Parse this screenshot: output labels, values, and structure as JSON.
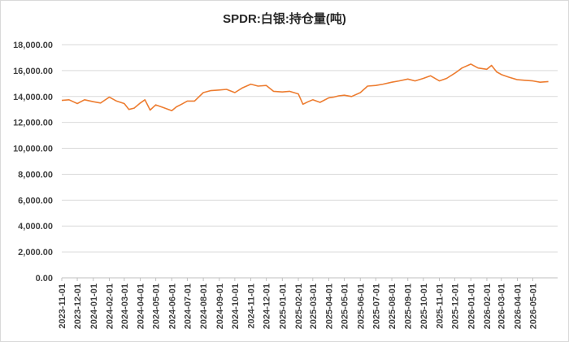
{
  "chart_data": {
    "type": "line",
    "title": "SPDR:白银:持仓量(吨)",
    "xlabel": "",
    "ylabel": "",
    "ylim": [
      0,
      18000
    ],
    "y_ticks": [
      "0.00",
      "2,000.00",
      "4,000.00",
      "6,000.00",
      "8,000.00",
      "10,000.00",
      "12,000.00",
      "14,000.00",
      "16,000.00",
      "18,000.00"
    ],
    "x_ticks": [
      "2023-11-01",
      "2023-12-01",
      "2024-01-01",
      "2024-02-01",
      "2024-03-01",
      "2024-04-01",
      "2024-05-01",
      "2024-06-01",
      "2024-07-01",
      "2024-08-01",
      "2024-09-01",
      "2024-10-01",
      "2024-11-01",
      "2024-12-01",
      "2025-01-01",
      "2025-02-01",
      "2025-03-01",
      "2025-04-01",
      "2025-05-01",
      "2025-06-01",
      "2025-07-01",
      "2025-08-01",
      "2025-09-01",
      "2025-10-01",
      "2025-11-01",
      "2025-12-01",
      "2026-01-01",
      "2026-02-01",
      "2026-03-01",
      "2026-04-01",
      "2026-05-01"
    ],
    "grid": "horizontal",
    "line_color": "#ed7d31",
    "series": [
      {
        "name": "",
        "x": [
          "2023-11-01",
          "2023-11-15",
          "2023-12-01",
          "2023-12-15",
          "2024-01-01",
          "2024-01-15",
          "2024-02-01",
          "2024-02-15",
          "2024-03-01",
          "2024-03-10",
          "2024-03-20",
          "2024-04-01",
          "2024-04-10",
          "2024-04-20",
          "2024-05-01",
          "2024-05-15",
          "2024-06-01",
          "2024-06-10",
          "2024-06-20",
          "2024-07-01",
          "2024-07-15",
          "2024-08-01",
          "2024-08-15",
          "2024-09-01",
          "2024-09-15",
          "2024-10-01",
          "2024-10-15",
          "2024-11-01",
          "2024-11-15",
          "2024-12-01",
          "2024-12-15",
          "2025-01-01",
          "2025-01-15",
          "2025-02-01",
          "2025-02-10",
          "2025-02-20",
          "2025-03-01",
          "2025-03-15",
          "2025-04-01",
          "2025-04-10",
          "2025-04-20",
          "2025-05-01",
          "2025-05-15",
          "2025-06-01",
          "2025-06-15",
          "2025-07-01",
          "2025-07-15",
          "2025-08-01",
          "2025-08-15",
          "2025-09-01",
          "2025-09-15",
          "2025-10-01",
          "2025-10-15",
          "2025-11-01",
          "2025-11-15",
          "2025-12-01",
          "2025-12-15",
          "2026-01-01",
          "2026-01-15",
          "2026-02-01",
          "2026-02-10",
          "2026-02-20",
          "2026-03-01",
          "2026-03-15",
          "2026-04-01",
          "2026-04-15",
          "2026-05-01",
          "2026-05-15",
          "2026-05-31"
        ],
        "y": [
          13700,
          13750,
          13450,
          13750,
          13600,
          13500,
          13950,
          13650,
          13450,
          13000,
          13100,
          13500,
          13750,
          12950,
          13350,
          13150,
          12900,
          13200,
          13400,
          13650,
          13650,
          14300,
          14450,
          14500,
          14550,
          14300,
          14650,
          14950,
          14800,
          14850,
          14400,
          14350,
          14400,
          14200,
          13400,
          13600,
          13750,
          13550,
          13900,
          13950,
          14050,
          14100,
          14000,
          14300,
          14800,
          14850,
          14950,
          15100,
          15200,
          15350,
          15200,
          15400,
          15600,
          15200,
          15400,
          15800,
          16200,
          16500,
          16200,
          16100,
          16400,
          15900,
          15700,
          15500,
          15300,
          15250,
          15200,
          15100,
          15150
        ]
      }
    ]
  }
}
